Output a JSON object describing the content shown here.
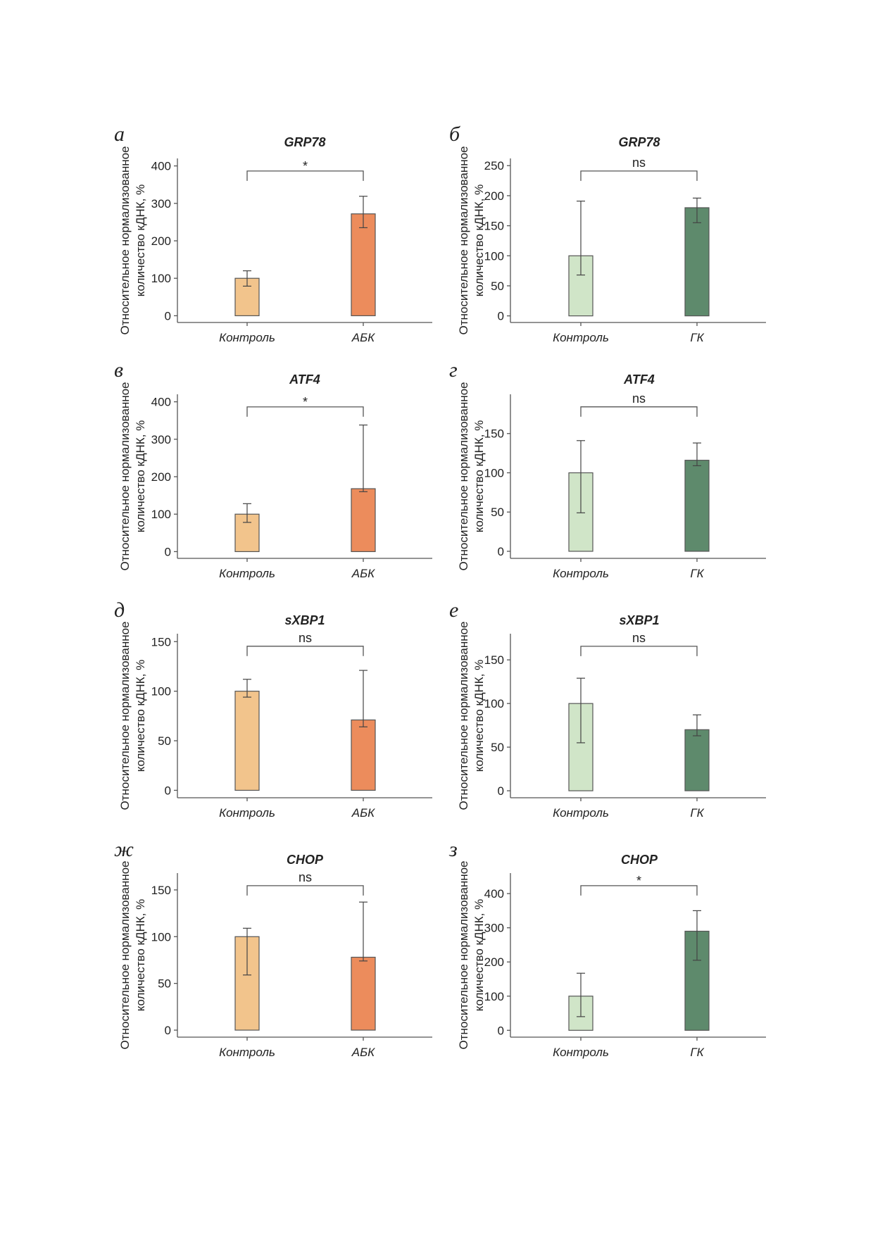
{
  "figure": {
    "ylabel_lines": [
      "Относительное нормализованное",
      "количество кДНК, %"
    ]
  },
  "colors": {
    "control_orange": "#f2c48c",
    "treat_orange": "#ec8c5c",
    "control_green": "#d0e5c8",
    "treat_green": "#5e8a6c"
  },
  "chart_data": [
    {
      "panel": "а",
      "title": "GRP78",
      "type": "bar",
      "categories": [
        "Контроль",
        "АБК"
      ],
      "values": [
        100,
        272
      ],
      "error_low": [
        79,
        235
      ],
      "error_high": [
        120,
        319
      ],
      "significance": "*",
      "yticks": [
        0,
        100,
        200,
        300,
        400
      ],
      "ylim": [
        -18,
        420
      ],
      "colors": [
        "#f2c48c",
        "#ec8c5c"
      ]
    },
    {
      "panel": "б",
      "title": "GRP78",
      "type": "bar",
      "categories": [
        "Контроль",
        "ГК"
      ],
      "values": [
        100,
        180
      ],
      "error_low": [
        68,
        155
      ],
      "error_high": [
        191,
        196
      ],
      "significance": "ns",
      "yticks": [
        0,
        50,
        100,
        150,
        200,
        250
      ],
      "ylim": [
        -11,
        262
      ],
      "colors": [
        "#d0e5c8",
        "#5e8a6c"
      ]
    },
    {
      "panel": "в",
      "title": "ATF4",
      "type": "bar",
      "categories": [
        "Контроль",
        "АБК"
      ],
      "values": [
        100,
        168
      ],
      "error_low": [
        78,
        160
      ],
      "error_high": [
        128,
        338
      ],
      "significance": "*",
      "yticks": [
        0,
        100,
        200,
        300,
        400
      ],
      "ylim": [
        -18,
        420
      ],
      "colors": [
        "#f2c48c",
        "#ec8c5c"
      ]
    },
    {
      "panel": "г",
      "title": "ATF4",
      "type": "bar",
      "categories": [
        "Контроль",
        "ГК"
      ],
      "values": [
        100,
        116
      ],
      "error_low": [
        49,
        109
      ],
      "error_high": [
        141,
        138
      ],
      "significance": "ns",
      "yticks": [
        0,
        50,
        100,
        150
      ],
      "ylim": [
        -9,
        200
      ],
      "colors": [
        "#d0e5c8",
        "#5e8a6c"
      ]
    },
    {
      "panel": "д",
      "title": "sXBP1",
      "type": "bar",
      "categories": [
        "Контроль",
        "АБК"
      ],
      "values": [
        100,
        71
      ],
      "error_low": [
        94,
        64
      ],
      "error_high": [
        112,
        121
      ],
      "significance": "ns",
      "yticks": [
        0,
        50,
        100,
        150
      ],
      "ylim": [
        -7.5,
        158
      ],
      "colors": [
        "#f2c48c",
        "#ec8c5c"
      ]
    },
    {
      "panel": "е",
      "title": "sXBP1",
      "type": "bar",
      "categories": [
        "Контроль",
        "ГК"
      ],
      "values": [
        100,
        70
      ],
      "error_low": [
        55,
        63
      ],
      "error_high": [
        129,
        87
      ],
      "significance": "ns",
      "yticks": [
        0,
        50,
        100,
        150
      ],
      "ylim": [
        -8,
        180
      ],
      "colors": [
        "#d0e5c8",
        "#5e8a6c"
      ]
    },
    {
      "panel": "ж",
      "title": "CHOP",
      "type": "bar",
      "categories": [
        "Контроль",
        "АБК"
      ],
      "values": [
        100,
        78
      ],
      "error_low": [
        59,
        74
      ],
      "error_high": [
        109,
        137
      ],
      "significance": "ns",
      "yticks": [
        0,
        50,
        100,
        150
      ],
      "ylim": [
        -7.5,
        168
      ],
      "colors": [
        "#f2c48c",
        "#ec8c5c"
      ]
    },
    {
      "panel": "з",
      "title": "CHOP",
      "type": "bar",
      "categories": [
        "Контроль",
        "ГК"
      ],
      "values": [
        100,
        290
      ],
      "error_low": [
        40,
        205
      ],
      "error_high": [
        167,
        350
      ],
      "significance": "*",
      "yticks": [
        0,
        100,
        200,
        300,
        400
      ],
      "ylim": [
        -20,
        460
      ],
      "colors": [
        "#d0e5c8",
        "#5e8a6c"
      ]
    }
  ]
}
